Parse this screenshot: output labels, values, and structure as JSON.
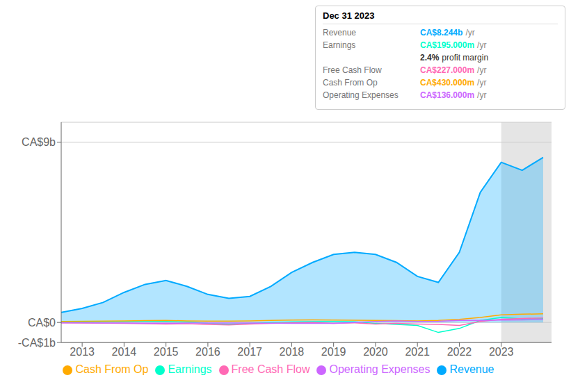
{
  "chart_data": {
    "type": "line",
    "x": [
      2012.5,
      2013.0,
      2013.5,
      2014.0,
      2014.5,
      2015.0,
      2015.5,
      2016.0,
      2016.5,
      2017.0,
      2017.5,
      2018.0,
      2018.5,
      2019.0,
      2019.5,
      2020.0,
      2020.5,
      2021.0,
      2021.5,
      2022.0,
      2022.5,
      2023.0,
      2023.5,
      2024.0
    ],
    "series": [
      {
        "name": "Revenue",
        "color": "#00aaff",
        "type": "area",
        "values": [
          0.5,
          0.7,
          1.0,
          1.5,
          1.9,
          2.1,
          1.8,
          1.4,
          1.2,
          1.3,
          1.8,
          2.5,
          3.0,
          3.4,
          3.5,
          3.4,
          3.0,
          2.3,
          2.0,
          3.5,
          6.5,
          8.0,
          7.6,
          8.244
        ]
      },
      {
        "name": "Earnings",
        "color": "#00ffcc",
        "type": "line",
        "values": [
          0.02,
          0.03,
          0.04,
          0.05,
          0.06,
          0.05,
          0.02,
          -0.05,
          -0.08,
          -0.05,
          0.0,
          0.02,
          0.04,
          0.04,
          0.03,
          -0.05,
          -0.1,
          -0.15,
          -0.5,
          -0.3,
          0.1,
          0.25,
          0.18,
          0.195
        ]
      },
      {
        "name": "Free Cash Flow",
        "color": "#ff69b4",
        "type": "line",
        "values": [
          -0.02,
          -0.03,
          -0.04,
          -0.05,
          -0.06,
          -0.08,
          -0.06,
          -0.1,
          -0.12,
          -0.08,
          -0.05,
          -0.02,
          0.0,
          -0.05,
          -0.02,
          -0.08,
          -0.05,
          -0.08,
          -0.1,
          -0.15,
          0.05,
          0.15,
          0.2,
          0.227
        ]
      },
      {
        "name": "Cash From Op",
        "color": "#ffaa00",
        "type": "line",
        "values": [
          0.05,
          0.06,
          0.07,
          0.08,
          0.09,
          0.1,
          0.08,
          0.07,
          0.07,
          0.08,
          0.1,
          0.12,
          0.13,
          0.12,
          0.11,
          0.1,
          0.09,
          0.08,
          0.1,
          0.15,
          0.25,
          0.38,
          0.41,
          0.43
        ]
      },
      {
        "name": "Operating Expenses",
        "color": "#cc66ff",
        "type": "line",
        "values": [
          -0.02,
          -0.02,
          -0.03,
          -0.03,
          -0.04,
          -0.04,
          -0.03,
          -0.03,
          -0.03,
          -0.03,
          -0.04,
          -0.05,
          -0.05,
          -0.05,
          0.0,
          0.05,
          0.08,
          0.05,
          0.06,
          0.1,
          0.1,
          0.12,
          0.13,
          0.136
        ]
      }
    ],
    "xlim": [
      2012.5,
      2024.2
    ],
    "xticks": [
      2013,
      2014,
      2015,
      2016,
      2017,
      2018,
      2019,
      2020,
      2021,
      2022,
      2023
    ],
    "ylim": [
      -1.0,
      10.0
    ],
    "yticks": [
      {
        "value": -1.0,
        "label": "-CA$1b"
      },
      {
        "value": 0.0,
        "label": "CA$0"
      },
      {
        "value": 9.0,
        "label": "CA$9b"
      }
    ],
    "grid": "y",
    "legend": "bottom",
    "highlight_from": 2023.0,
    "annotations": {
      "title": "Dec 31 2023",
      "rows": [
        {
          "label": "Revenue",
          "value": "CA$8.244b",
          "unit": "/yr",
          "color": "#00aaff"
        },
        {
          "label": "Earnings",
          "value": "CA$195.000m",
          "unit": "/yr",
          "color": "#00ffcc"
        },
        {
          "value": "2.4%",
          "unit": "profit margin"
        },
        {
          "label": "Free Cash Flow",
          "value": "CA$227.000m",
          "unit": "/yr",
          "color": "#ff69b4"
        },
        {
          "label": "Cash From Op",
          "value": "CA$430.000m",
          "unit": "/yr",
          "color": "#ffaa00"
        },
        {
          "label": "Operating Expenses",
          "value": "CA$136.000m",
          "unit": "/yr",
          "color": "#cc66ff"
        }
      ]
    }
  }
}
